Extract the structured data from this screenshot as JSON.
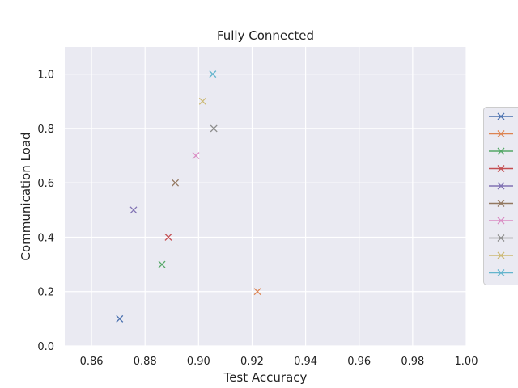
{
  "chart_data": {
    "type": "scatter",
    "title": "Fully Connected",
    "xlabel": "Test Accuracy",
    "ylabel": "Communication Load",
    "xlim": [
      0.85,
      1.0
    ],
    "ylim": [
      0.0,
      1.1
    ],
    "xticks": [
      "0.86",
      "0.88",
      "0.90",
      "0.92",
      "0.94",
      "0.96",
      "0.98",
      "1.00"
    ],
    "yticks": [
      "0.0",
      "0.2",
      "0.4",
      "0.6",
      "0.8",
      "1.0"
    ],
    "grid": true,
    "marker": "x",
    "legend_placement": "right, outside plot area",
    "series": [
      {
        "color": "#4c72b0",
        "x": 0.8705,
        "y": 0.1
      },
      {
        "color": "#dd8452",
        "x": 0.922,
        "y": 0.2
      },
      {
        "color": "#55a868",
        "x": 0.8863,
        "y": 0.3
      },
      {
        "color": "#c44e52",
        "x": 0.8887,
        "y": 0.4
      },
      {
        "color": "#8172b3",
        "x": 0.8757,
        "y": 0.5
      },
      {
        "color": "#937860",
        "x": 0.8913,
        "y": 0.6
      },
      {
        "color": "#da8bc3",
        "x": 0.899,
        "y": 0.7
      },
      {
        "color": "#8c8c8c",
        "x": 0.9057,
        "y": 0.8
      },
      {
        "color": "#ccb974",
        "x": 0.9015,
        "y": 0.9
      },
      {
        "color": "#64b5cd",
        "x": 0.9053,
        "y": 1.0
      }
    ]
  }
}
